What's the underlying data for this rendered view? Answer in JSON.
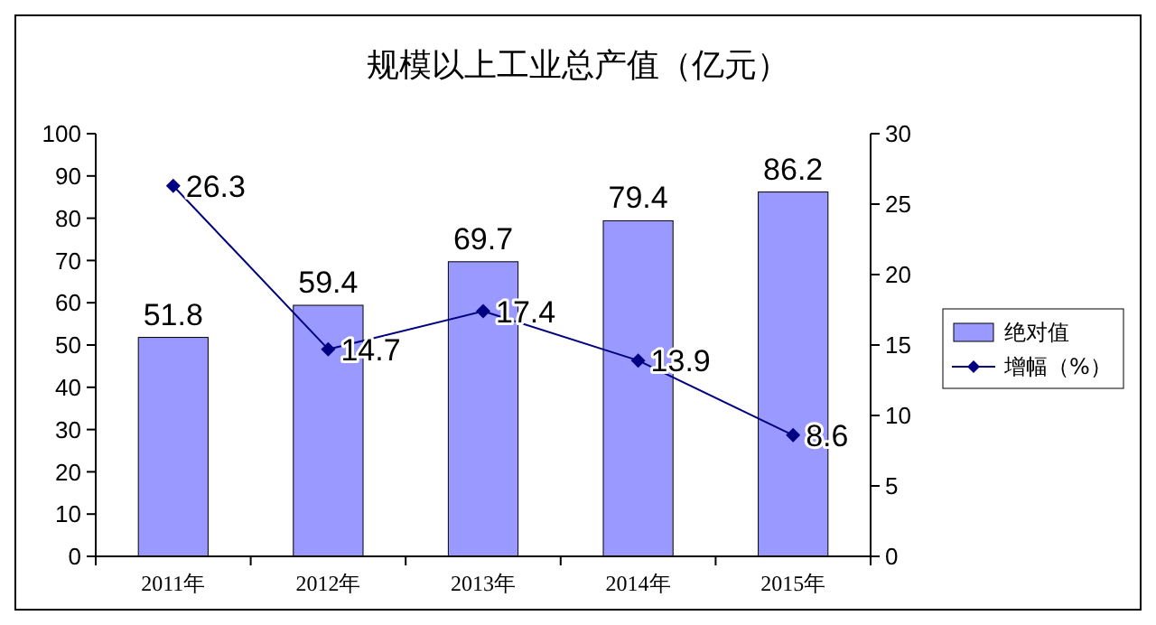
{
  "chart_data": {
    "type": "bar",
    "title": "规模以上工业总产值（亿元）",
    "categories": [
      "2011年",
      "2012年",
      "2013年",
      "2014年",
      "2015年"
    ],
    "series": [
      {
        "name": "绝对值",
        "color": "#9999ff",
        "values": [
          51.8,
          59.4,
          69.7,
          79.4,
          86.2
        ]
      },
      {
        "name": "增幅（%）",
        "type": "line",
        "axis": "y2",
        "color": "#000080",
        "marker": "diamond",
        "values": [
          26.3,
          14.7,
          17.4,
          13.9,
          8.6
        ]
      }
    ],
    "ylim": [
      0,
      100
    ],
    "yticks": [
      0,
      10,
      20,
      30,
      40,
      50,
      60,
      70,
      80,
      90,
      100
    ],
    "y2lim": [
      0,
      30
    ],
    "y2ticks": [
      0,
      5,
      10,
      15,
      20,
      25,
      30
    ],
    "data_labels": true,
    "legend": "right",
    "grid": false
  }
}
